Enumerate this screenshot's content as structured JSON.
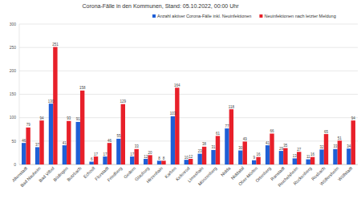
{
  "chart_data": {
    "type": "bar",
    "title": "Corona-Fälle in den Kommunen, Stand: 05.10.2022, 00:00 Uhr",
    "categories": [
      "Altenstadt",
      "Bad Nauheim",
      "Bad Vilbel",
      "Büdingen",
      "Butzbach",
      "Echzell",
      "Florstadt",
      "Friedberg",
      "Gedern",
      "Glauburg",
      "Hirzenhain",
      "Karben",
      "Kefenrod",
      "Limeshain",
      "Münzenberg",
      "Nidda",
      "Niddatal",
      "Ober-Mörlen",
      "Ortenberg",
      "Ranstadt",
      "Reichelsheim",
      "Rockenberg",
      "Rosbach",
      "Wölfersheim",
      "Wöllstadt"
    ],
    "series": [
      {
        "name": "Anzahl aktiver Corona-Fälle inkl. Neuinfektionen",
        "color": "#1f5fd6",
        "values": [
          46,
          37,
          130,
          41,
          91,
          6,
          17,
          55,
          17,
          12,
          8,
          103,
          10,
          23,
          31,
          77,
          30,
          9,
          41,
          29,
          13,
          11,
          32,
          33,
          34
        ]
      },
      {
        "name": "Neuinfektionen nach letzter Meldung",
        "color": "#e8202a",
        "values": [
          79,
          94,
          251,
          93,
          158,
          17,
          46,
          129,
          33,
          20,
          8,
          164,
          12,
          38,
          61,
          118,
          49,
          16,
          66,
          35,
          27,
          16,
          65,
          51,
          94
        ]
      }
    ],
    "ylim": [
      0,
      300
    ],
    "yticks": [
      0,
      50,
      100,
      150,
      200,
      250,
      300
    ],
    "grid": true,
    "legend": "top",
    "data_labels": true
  }
}
